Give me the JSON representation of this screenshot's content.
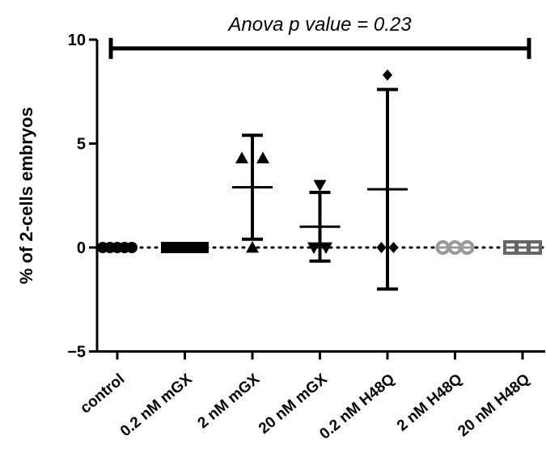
{
  "chart_data": {
    "type": "scatter",
    "ylabel": "% of 2-cells embryos",
    "ylim": [
      -5,
      10
    ],
    "yticks": [
      -5,
      0,
      5,
      10
    ],
    "y_tick_labels": [
      "−5",
      "0",
      "5",
      "10"
    ],
    "reference_line": {
      "y": 0,
      "style": "dotted"
    },
    "categories": [
      "control",
      "0.2 nM mGX",
      "2 nM mGX",
      "20 nM mGX",
      "0.2 nM H48Q",
      "2 nM H48Q",
      "20 nM H48Q"
    ],
    "groups": [
      {
        "category": "control",
        "marker": "circle",
        "color": "#000000",
        "points": [
          0,
          0,
          0,
          0,
          0
        ],
        "mean": 0,
        "sd": 0
      },
      {
        "category": "0.2 nM mGX",
        "marker": "square",
        "color": "#000000",
        "points": [
          0,
          0,
          0,
          0,
          0,
          0
        ],
        "mean": 0,
        "sd": 0
      },
      {
        "category": "2 nM mGX",
        "marker": "triangle-up",
        "color": "#000000",
        "points": [
          4.3,
          4.3,
          0
        ],
        "mean": 2.9,
        "sd": 2.5
      },
      {
        "category": "20 nM mGX",
        "marker": "triangle-down",
        "color": "#000000",
        "points": [
          3.0,
          0,
          0
        ],
        "mean": 1.0,
        "sd": 1.65
      },
      {
        "category": "0.2 nM H48Q",
        "marker": "diamond",
        "color": "#000000",
        "points": [
          8.3,
          0,
          0
        ],
        "mean": 2.8,
        "sd": 4.8
      },
      {
        "category": "2 nM H48Q",
        "marker": "circle-open",
        "color": "#999999",
        "points": [
          0,
          0,
          0
        ],
        "mean": 0,
        "sd": 0
      },
      {
        "category": "20 nM H48Q",
        "marker": "square-open",
        "color": "#666666",
        "points": [
          0,
          0,
          0
        ],
        "mean": 0,
        "sd": 0
      }
    ],
    "annotations": [
      {
        "text": "Anova p value = 0.23",
        "bracket_from": "control",
        "bracket_to": "20 nM H48Q",
        "y": 9.5
      }
    ]
  }
}
